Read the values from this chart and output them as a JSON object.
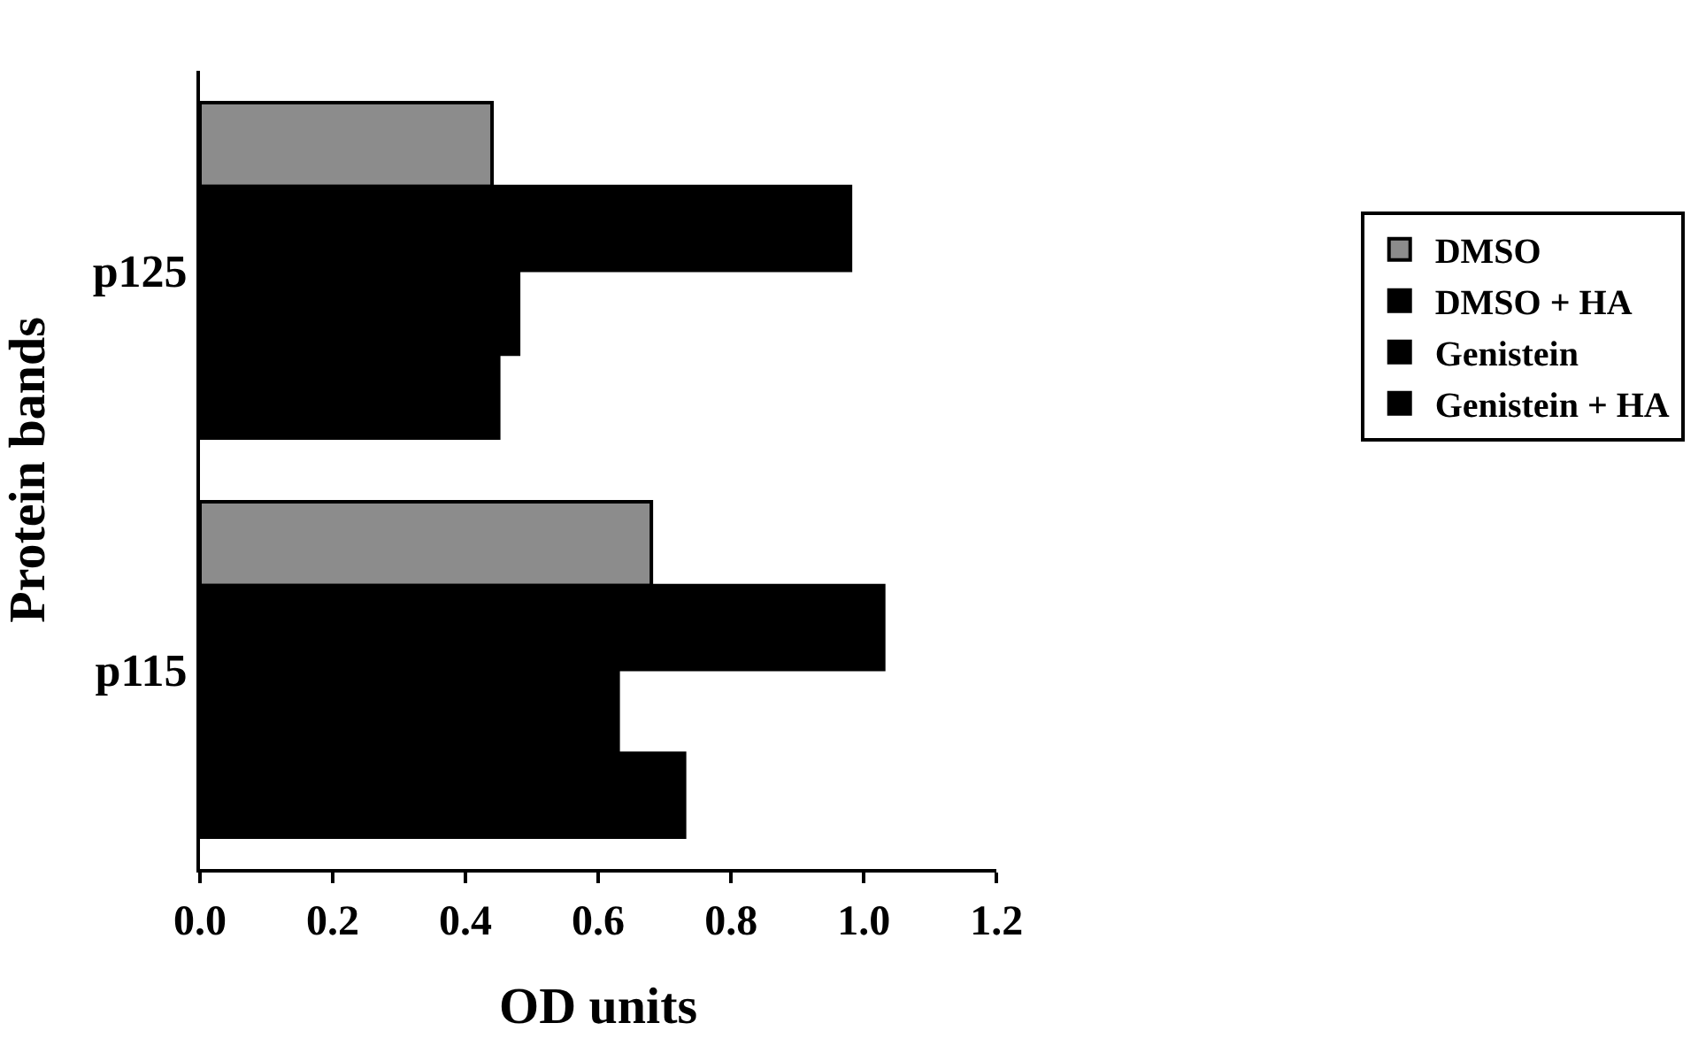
{
  "chart_data": {
    "type": "bar",
    "orientation": "horizontal",
    "xlabel": "OD units",
    "ylabel": "Protein bands",
    "categories": [
      "p125",
      "p115"
    ],
    "series": [
      {
        "name": "DMSO",
        "color": "#8c8c8c",
        "values": [
          0.44,
          0.68
        ]
      },
      {
        "name": "DMSO + HA",
        "color": "#000000",
        "values": [
          0.98,
          1.03
        ]
      },
      {
        "name": "Genistein",
        "color": "#000000",
        "values": [
          0.48,
          0.63
        ]
      },
      {
        "name": "Genistein + HA",
        "color": "#000000",
        "values": [
          0.45,
          0.73
        ]
      }
    ],
    "xlim": [
      0,
      1.2
    ],
    "xticks": [
      {
        "value": 0,
        "label": "0.0"
      },
      0.2,
      0.4,
      0.6,
      0.8,
      {
        "value": 1,
        "label": "1.0"
      },
      1.2
    ],
    "legend": "right"
  }
}
